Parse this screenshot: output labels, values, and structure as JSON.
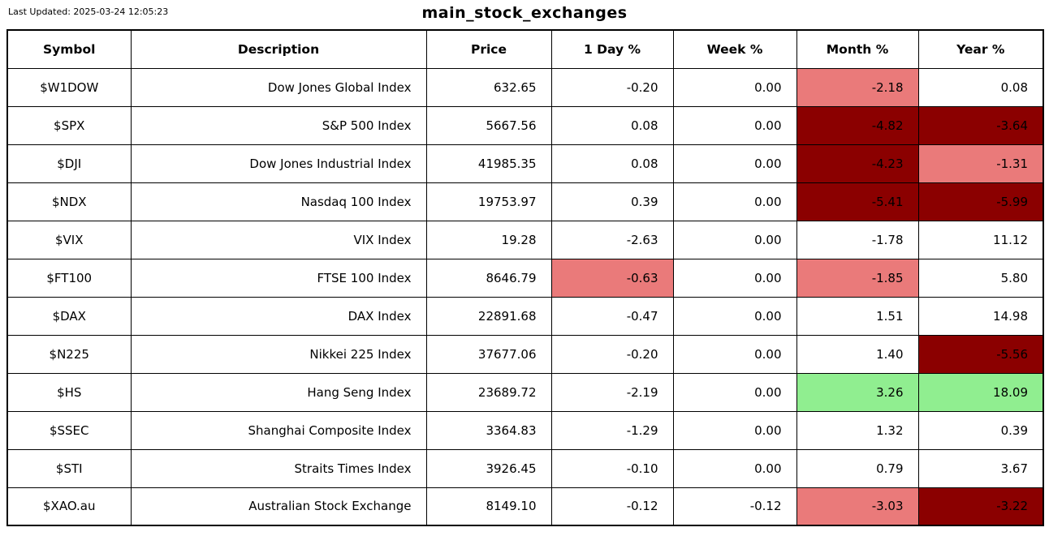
{
  "header": {
    "last_updated": "Last Updated: 2025-03-24 12:05:23",
    "title": "main_stock_exchanges"
  },
  "chart_data": {
    "type": "table",
    "title": "main_stock_exchanges",
    "columns": [
      "Symbol",
      "Description",
      "Price",
      "1 Day %",
      "Week %",
      "Month %",
      "Year %"
    ],
    "column_keys": [
      "symbol",
      "description",
      "price",
      "day",
      "week",
      "month",
      "year"
    ],
    "column_aligns": [
      "center",
      "right",
      "right",
      "right",
      "right",
      "right",
      "right"
    ],
    "style_colors": {
      "mild-loss": "#ea7a7a",
      "severe-loss": "#8b0000",
      "gain": "#90ee90"
    },
    "rows": [
      {
        "cells": [
          "$W1DOW",
          "Dow Jones Global Index",
          "632.65",
          "-0.20",
          "0.00",
          "-2.18",
          "0.08"
        ],
        "cell_styles": [
          null,
          null,
          null,
          null,
          null,
          "mild-loss",
          null
        ]
      },
      {
        "cells": [
          "$SPX",
          "S&P 500 Index",
          "5667.56",
          "0.08",
          "0.00",
          "-4.82",
          "-3.64"
        ],
        "cell_styles": [
          null,
          null,
          null,
          null,
          null,
          "severe-loss",
          "severe-loss"
        ]
      },
      {
        "cells": [
          "$DJI",
          "Dow Jones Industrial Index",
          "41985.35",
          "0.08",
          "0.00",
          "-4.23",
          "-1.31"
        ],
        "cell_styles": [
          null,
          null,
          null,
          null,
          null,
          "severe-loss",
          "mild-loss"
        ]
      },
      {
        "cells": [
          "$NDX",
          "Nasdaq 100 Index",
          "19753.97",
          "0.39",
          "0.00",
          "-5.41",
          "-5.99"
        ],
        "cell_styles": [
          null,
          null,
          null,
          null,
          null,
          "severe-loss",
          "severe-loss"
        ]
      },
      {
        "cells": [
          "$VIX",
          "VIX Index",
          "19.28",
          "-2.63",
          "0.00",
          "-1.78",
          "11.12"
        ],
        "cell_styles": [
          null,
          null,
          null,
          null,
          null,
          null,
          null
        ]
      },
      {
        "cells": [
          "$FT100",
          "FTSE 100 Index",
          "8646.79",
          "-0.63",
          "0.00",
          "-1.85",
          "5.80"
        ],
        "cell_styles": [
          null,
          null,
          null,
          "mild-loss",
          null,
          "mild-loss",
          null
        ]
      },
      {
        "cells": [
          "$DAX",
          "DAX Index",
          "22891.68",
          "-0.47",
          "0.00",
          "1.51",
          "14.98"
        ],
        "cell_styles": [
          null,
          null,
          null,
          null,
          null,
          null,
          null
        ]
      },
      {
        "cells": [
          "$N225",
          "Nikkei 225 Index",
          "37677.06",
          "-0.20",
          "0.00",
          "1.40",
          "-5.56"
        ],
        "cell_styles": [
          null,
          null,
          null,
          null,
          null,
          null,
          "severe-loss"
        ]
      },
      {
        "cells": [
          "$HS",
          "Hang Seng Index",
          "23689.72",
          "-2.19",
          "0.00",
          "3.26",
          "18.09"
        ],
        "cell_styles": [
          null,
          null,
          null,
          null,
          null,
          "gain",
          "gain"
        ]
      },
      {
        "cells": [
          "$SSEC",
          "Shanghai Composite Index",
          "3364.83",
          "-1.29",
          "0.00",
          "1.32",
          "0.39"
        ],
        "cell_styles": [
          null,
          null,
          null,
          null,
          null,
          null,
          null
        ]
      },
      {
        "cells": [
          "$STI",
          "Straits Times Index",
          "3926.45",
          "-0.10",
          "0.00",
          "0.79",
          "3.67"
        ],
        "cell_styles": [
          null,
          null,
          null,
          null,
          null,
          null,
          null
        ]
      },
      {
        "cells": [
          "$XAO.au",
          "Australian Stock Exchange",
          "8149.10",
          "-0.12",
          "-0.12",
          "-3.03",
          "-3.22"
        ],
        "cell_styles": [
          null,
          null,
          null,
          null,
          null,
          "mild-loss",
          "severe-loss"
        ]
      }
    ]
  }
}
